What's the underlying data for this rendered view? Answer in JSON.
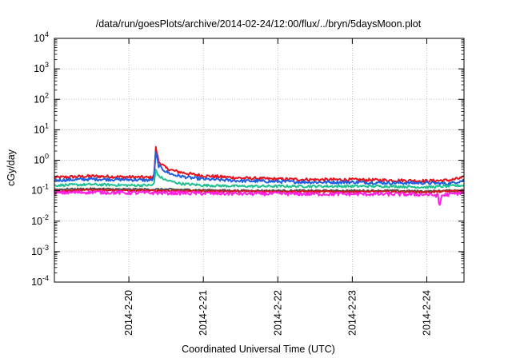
{
  "chart_data": {
    "type": "line",
    "title": "/data/run/goesPlots/archive/2014-02-24/12:00/flux/../bryn/5daysMoon.plot",
    "xlabel": "Coordinated Universal Time (UTC)",
    "ylabel": "cGy/day",
    "yscale": "log",
    "ylim": [
      0.0001,
      10000
    ],
    "xlim": [
      0,
      5.5
    ],
    "x_origin_date": "2014-02-19",
    "x_ticks": [
      {
        "x": 1,
        "label": "2014-2-20"
      },
      {
        "x": 2,
        "label": "2014-2-21"
      },
      {
        "x": 3,
        "label": "2014-2-22"
      },
      {
        "x": 4,
        "label": "2014-2-23"
      },
      {
        "x": 5,
        "label": "2014-2-24"
      }
    ],
    "y_ticks": [
      {
        "exp": "-4",
        "value": 0.0001
      },
      {
        "exp": "-3",
        "value": 0.001
      },
      {
        "exp": "-2",
        "value": 0.01
      },
      {
        "exp": "-1",
        "value": 0.1
      },
      {
        "exp": "0",
        "value": 1
      },
      {
        "exp": "1",
        "value": 10
      },
      {
        "exp": "2",
        "value": 100
      },
      {
        "exp": "3",
        "value": 1000
      },
      {
        "exp": "4",
        "value": 10000
      }
    ],
    "y_tick_base": "10",
    "grid": true,
    "legend": "none",
    "series": [
      {
        "color": "#e8101a",
        "jitter": 0.05,
        "x": [
          0,
          0.5,
          1.0,
          1.3,
          1.34,
          1.36,
          1.38,
          1.4,
          1.5,
          1.6,
          1.8,
          2.0,
          2.5,
          3.0,
          3.5,
          4.0,
          4.5,
          5.0,
          5.3,
          5.5
        ],
        "values": [
          0.27,
          0.3,
          0.28,
          0.27,
          0.32,
          2.7,
          1.6,
          0.9,
          0.55,
          0.45,
          0.36,
          0.31,
          0.26,
          0.24,
          0.23,
          0.23,
          0.22,
          0.21,
          0.22,
          0.27
        ]
      },
      {
        "color": "#1f5fe0",
        "jitter": 0.05,
        "x": [
          0,
          0.5,
          1.0,
          1.3,
          1.34,
          1.36,
          1.38,
          1.4,
          1.5,
          1.6,
          1.8,
          2.0,
          2.5,
          3.0,
          3.5,
          4.0,
          4.5,
          5.0,
          5.3,
          5.5
        ],
        "values": [
          0.22,
          0.24,
          0.23,
          0.22,
          0.26,
          1.9,
          1.1,
          0.65,
          0.42,
          0.33,
          0.27,
          0.24,
          0.21,
          0.2,
          0.19,
          0.19,
          0.18,
          0.18,
          0.17,
          0.22
        ]
      },
      {
        "color": "#20c090",
        "jitter": 0.04,
        "x": [
          0,
          0.5,
          1.0,
          1.3,
          1.34,
          1.36,
          1.4,
          1.5,
          1.7,
          2.0,
          2.5,
          3.0,
          3.5,
          4.0,
          4.5,
          5.0,
          5.5
        ],
        "values": [
          0.15,
          0.16,
          0.15,
          0.15,
          0.17,
          0.5,
          0.3,
          0.22,
          0.17,
          0.15,
          0.14,
          0.14,
          0.14,
          0.14,
          0.14,
          0.13,
          0.15
        ]
      },
      {
        "color": "#505050",
        "jitter": 0.03,
        "x": [
          0,
          0.5,
          1.0,
          1.5,
          2.0,
          2.5,
          3.0,
          3.5,
          4.0,
          4.5,
          5.0,
          5.5
        ],
        "values": [
          0.11,
          0.115,
          0.11,
          0.11,
          0.105,
          0.1,
          0.1,
          0.1,
          0.1,
          0.1,
          0.095,
          0.105
        ]
      },
      {
        "color": "#d11818",
        "jitter": 0.03,
        "x": [
          0,
          0.5,
          1.0,
          1.5,
          2.0,
          2.5,
          3.0,
          3.5,
          4.0,
          4.5,
          5.0,
          5.5
        ],
        "values": [
          0.1,
          0.105,
          0.1,
          0.1,
          0.097,
          0.095,
          0.095,
          0.093,
          0.093,
          0.093,
          0.09,
          0.1
        ]
      },
      {
        "color": "#ff20e0",
        "jitter": 0.06,
        "x": [
          0,
          0.5,
          1.0,
          1.5,
          2.0,
          2.5,
          3.0,
          3.5,
          4.0,
          4.5,
          5.0,
          5.15,
          5.17,
          5.2,
          5.5
        ],
        "values": [
          0.085,
          0.09,
          0.085,
          0.085,
          0.082,
          0.08,
          0.08,
          0.078,
          0.078,
          0.077,
          0.075,
          0.07,
          0.028,
          0.07,
          0.088
        ]
      }
    ]
  }
}
